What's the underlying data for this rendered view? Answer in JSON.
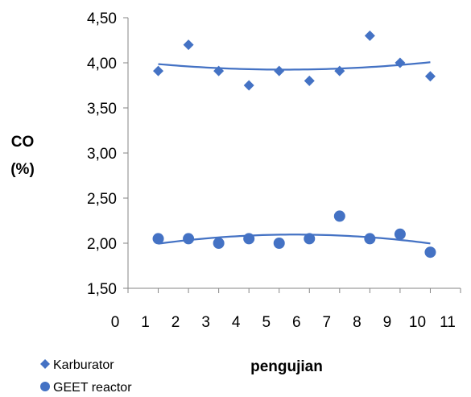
{
  "chart_data": {
    "type": "scatter",
    "title": "",
    "xlabel": "pengujian",
    "ylabel_lines": [
      "CO",
      "(%)"
    ],
    "xlim": [
      0,
      11
    ],
    "ylim": [
      1.5,
      4.5
    ],
    "x_ticks": [
      "0",
      "1",
      "2",
      "3",
      "4",
      "5",
      "6",
      "7",
      "8",
      "9",
      "10",
      "11"
    ],
    "y_ticks": [
      "1,50",
      "2,00",
      "2,50",
      "3,00",
      "3,50",
      "4,00",
      "4,50"
    ],
    "grid": false,
    "legend_position": "bottom-left",
    "series": [
      {
        "name": "Karburator",
        "marker": "diamond",
        "color": "#4472C4",
        "trendline": "polynomial",
        "x": [
          1,
          2,
          3,
          4,
          5,
          6,
          7,
          8,
          9,
          10
        ],
        "y": [
          3.91,
          4.2,
          3.91,
          3.75,
          3.91,
          3.8,
          3.91,
          4.3,
          4.0,
          3.85
        ]
      },
      {
        "name": "GEET reactor",
        "marker": "circle",
        "color": "#4472C4",
        "trendline": "polynomial",
        "x": [
          1,
          2,
          3,
          4,
          5,
          6,
          7,
          8,
          9,
          10
        ],
        "y": [
          2.05,
          2.05,
          2.0,
          2.05,
          2.0,
          2.05,
          2.3,
          2.05,
          2.1,
          1.9
        ]
      }
    ]
  }
}
